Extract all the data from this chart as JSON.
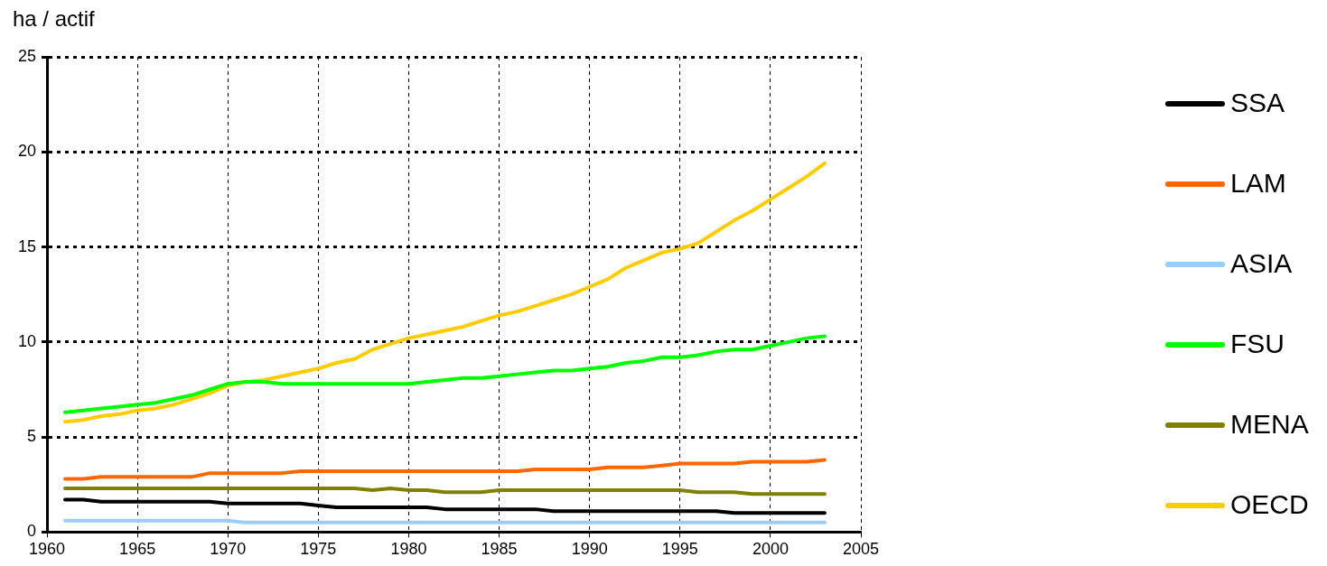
{
  "chart_data": {
    "type": "line",
    "ylabel": "ha / actif",
    "xlim": [
      1960,
      2005
    ],
    "xticks": [
      1960,
      1965,
      1970,
      1975,
      1980,
      1985,
      1990,
      1995,
      2000,
      2005
    ],
    "ylim": [
      0,
      25
    ],
    "yticks": [
      0,
      5,
      10,
      15,
      20,
      25
    ],
    "grid": true,
    "legend": "right",
    "line_style": "solid",
    "marker": "none",
    "x": [
      1961,
      1962,
      1963,
      1964,
      1965,
      1966,
      1967,
      1968,
      1969,
      1970,
      1971,
      1972,
      1973,
      1974,
      1975,
      1976,
      1977,
      1978,
      1979,
      1980,
      1981,
      1982,
      1983,
      1984,
      1985,
      1986,
      1987,
      1988,
      1989,
      1990,
      1991,
      1992,
      1993,
      1994,
      1995,
      1996,
      1997,
      1998,
      1999,
      2000,
      2001,
      2002,
      2003
    ],
    "series": [
      {
        "name": "SSA",
        "color": "#000000",
        "values": [
          1.7,
          1.7,
          1.6,
          1.6,
          1.6,
          1.6,
          1.6,
          1.6,
          1.6,
          1.5,
          1.5,
          1.5,
          1.5,
          1.5,
          1.4,
          1.3,
          1.3,
          1.3,
          1.3,
          1.3,
          1.3,
          1.2,
          1.2,
          1.2,
          1.2,
          1.2,
          1.2,
          1.1,
          1.1,
          1.1,
          1.1,
          1.1,
          1.1,
          1.1,
          1.1,
          1.1,
          1.1,
          1.0,
          1.0,
          1.0,
          1.0,
          1.0,
          1.0
        ]
      },
      {
        "name": "LAM",
        "color": "#ff6600",
        "values": [
          2.8,
          2.8,
          2.9,
          2.9,
          2.9,
          2.9,
          2.9,
          2.9,
          3.1,
          3.1,
          3.1,
          3.1,
          3.1,
          3.2,
          3.2,
          3.2,
          3.2,
          3.2,
          3.2,
          3.2,
          3.2,
          3.2,
          3.2,
          3.2,
          3.2,
          3.2,
          3.3,
          3.3,
          3.3,
          3.3,
          3.4,
          3.4,
          3.4,
          3.5,
          3.6,
          3.6,
          3.6,
          3.6,
          3.7,
          3.7,
          3.7,
          3.7,
          3.8
        ]
      },
      {
        "name": "ASIA",
        "color": "#99ccff",
        "values": [
          0.6,
          0.6,
          0.6,
          0.6,
          0.6,
          0.6,
          0.6,
          0.6,
          0.6,
          0.6,
          0.5,
          0.5,
          0.5,
          0.5,
          0.5,
          0.5,
          0.5,
          0.5,
          0.5,
          0.5,
          0.5,
          0.5,
          0.5,
          0.5,
          0.5,
          0.5,
          0.5,
          0.5,
          0.5,
          0.5,
          0.5,
          0.5,
          0.5,
          0.5,
          0.5,
          0.5,
          0.5,
          0.5,
          0.5,
          0.5,
          0.5,
          0.5,
          0.5
        ]
      },
      {
        "name": "FSU",
        "color": "#00ff00",
        "values": [
          6.3,
          6.4,
          6.5,
          6.6,
          6.7,
          6.8,
          7.0,
          7.2,
          7.5,
          7.8,
          7.9,
          7.9,
          7.8,
          7.8,
          7.8,
          7.8,
          7.8,
          7.8,
          7.8,
          7.8,
          7.9,
          8.0,
          8.1,
          8.1,
          8.2,
          8.3,
          8.4,
          8.5,
          8.5,
          8.6,
          8.7,
          8.9,
          9.0,
          9.2,
          9.2,
          9.3,
          9.5,
          9.6,
          9.6,
          9.8,
          10.0,
          10.2,
          10.3
        ]
      },
      {
        "name": "MENA",
        "color": "#808000",
        "values": [
          2.3,
          2.3,
          2.3,
          2.3,
          2.3,
          2.3,
          2.3,
          2.3,
          2.3,
          2.3,
          2.3,
          2.3,
          2.3,
          2.3,
          2.3,
          2.3,
          2.3,
          2.2,
          2.3,
          2.2,
          2.2,
          2.1,
          2.1,
          2.1,
          2.2,
          2.2,
          2.2,
          2.2,
          2.2,
          2.2,
          2.2,
          2.2,
          2.2,
          2.2,
          2.2,
          2.1,
          2.1,
          2.1,
          2.0,
          2.0,
          2.0,
          2.0,
          2.0
        ]
      },
      {
        "name": "OECD",
        "color": "#ffcc00",
        "values": [
          5.8,
          5.9,
          6.1,
          6.2,
          6.4,
          6.5,
          6.7,
          7.0,
          7.3,
          7.7,
          7.9,
          8.0,
          8.2,
          8.4,
          8.6,
          8.9,
          9.1,
          9.6,
          9.9,
          10.2,
          10.4,
          10.6,
          10.8,
          11.1,
          11.4,
          11.6,
          11.9,
          12.2,
          12.5,
          12.9,
          13.3,
          13.9,
          14.3,
          14.7,
          14.9,
          15.2,
          15.8,
          16.4,
          16.9,
          17.5,
          18.1,
          18.7,
          19.4
        ]
      }
    ]
  }
}
